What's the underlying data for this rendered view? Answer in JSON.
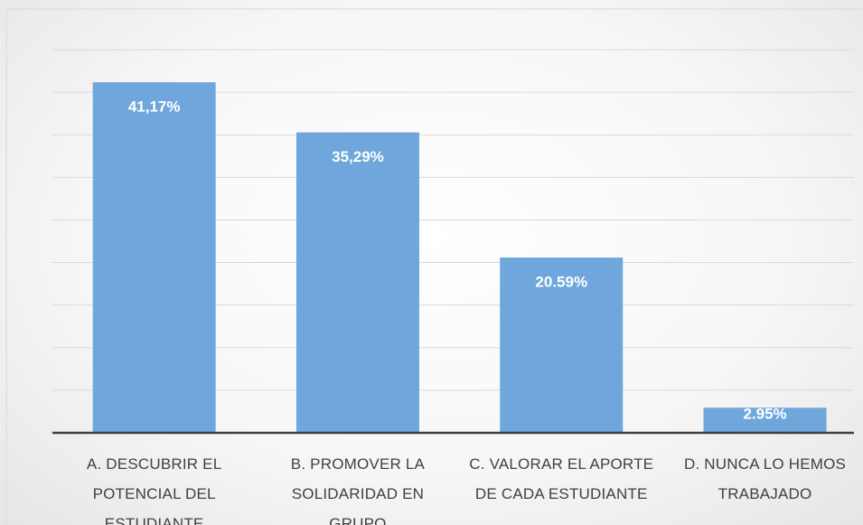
{
  "chart_data": {
    "type": "bar",
    "categories": [
      "A. DESCUBRIR  EL POTENCIAL DEL ESTUDIANTE",
      "B. PROMOVER LA SOLIDARIDAD EN GRUPO",
      "C. VALORAR EL APORTE DE CADA ESTUDIANTE",
      "D. NUNCA LO HEMOS TRABAJADO"
    ],
    "values": [
      41.17,
      35.29,
      20.59,
      2.95
    ],
    "value_labels": [
      "41,17%",
      "35,29%",
      "20.59%",
      "2.95%"
    ],
    "color": "#6fa7dc",
    "ylim": [
      0,
      45
    ],
    "yticks": [
      0,
      5,
      10,
      15,
      20,
      25,
      30,
      35,
      40,
      45
    ],
    "grid": true
  }
}
